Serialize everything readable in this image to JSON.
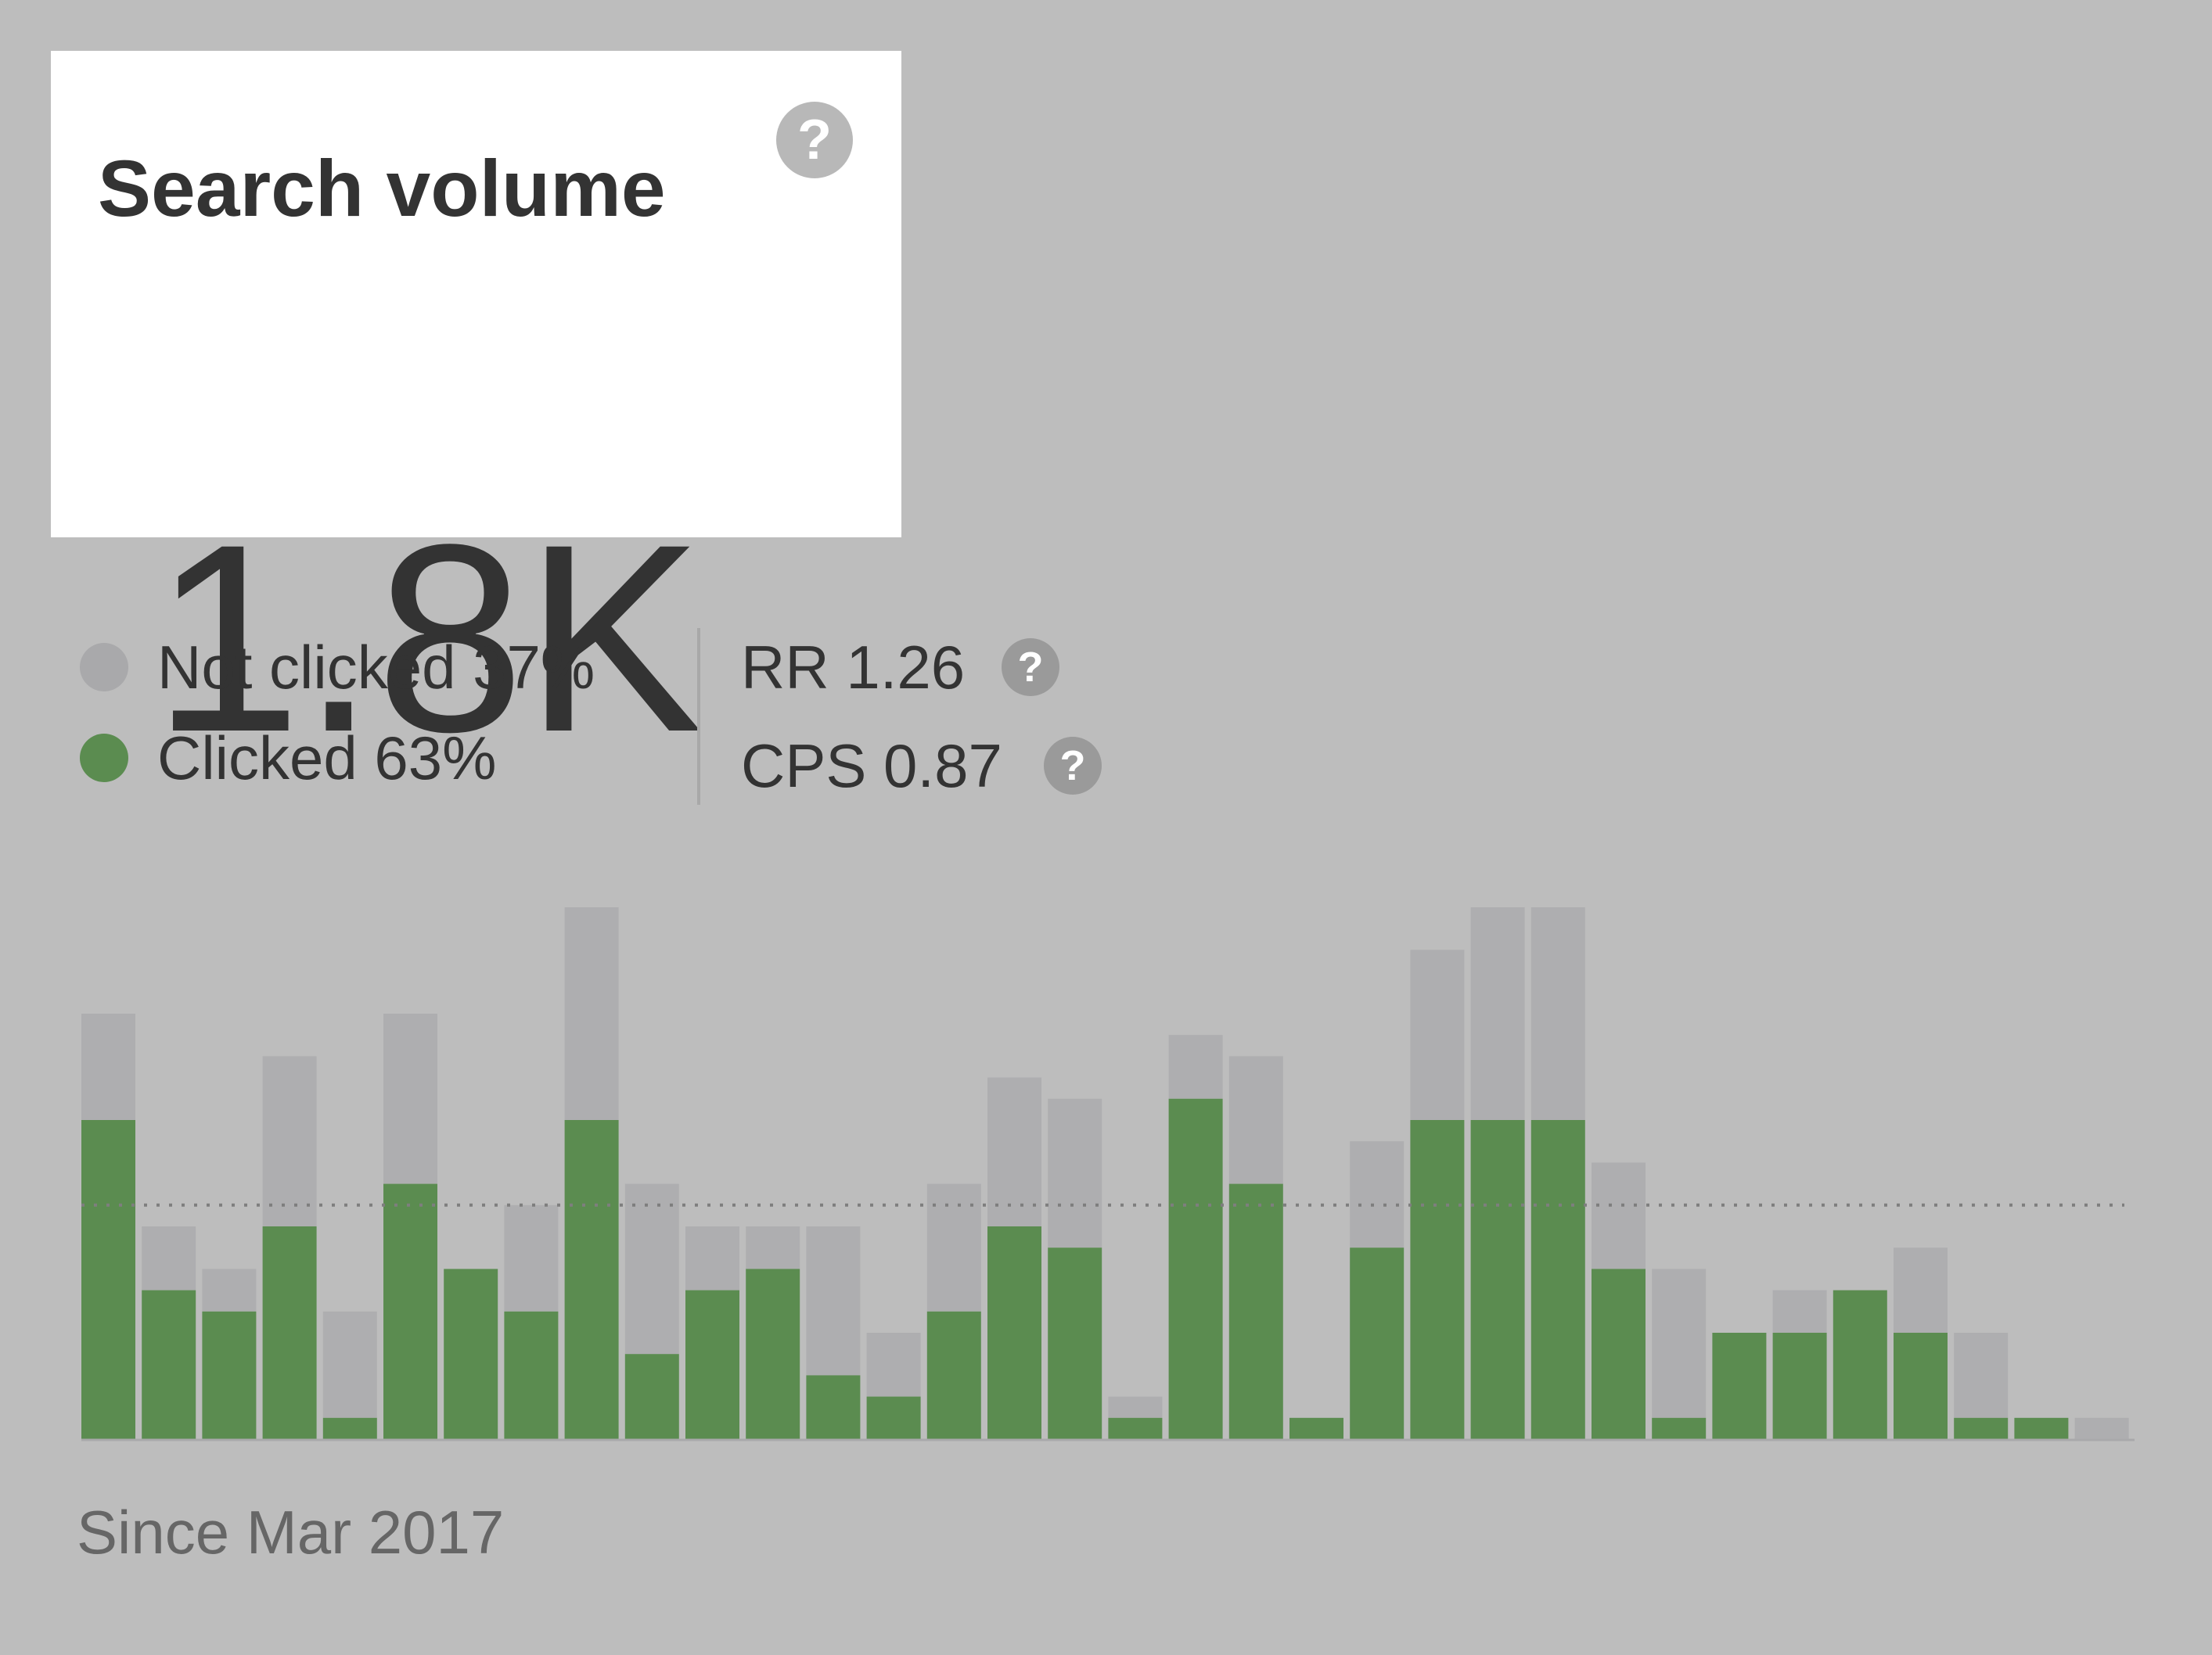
{
  "card": {
    "title": "Search volume",
    "value": "1.8K"
  },
  "legend": {
    "not_clicked": {
      "label": "Not clicked 37%",
      "color": "#a9a9ab"
    },
    "clicked": {
      "label": "Clicked 63%",
      "color": "#5b8c50"
    }
  },
  "metrics": {
    "rr": "RR 1.26",
    "cps": "CPS 0.87"
  },
  "icons": {
    "help": "?"
  },
  "footer": {
    "since": "Since Mar 2017"
  },
  "chart_data": {
    "type": "bar",
    "stacked": true,
    "ylim": [
      0,
      250
    ],
    "average": 110,
    "grid": false,
    "series": [
      {
        "name": "Clicked",
        "color": "#5b8c50",
        "values": [
          150,
          70,
          60,
          100,
          10,
          120,
          80,
          60,
          150,
          40,
          70,
          80,
          30,
          20,
          60,
          100,
          90,
          10,
          160,
          120,
          10,
          90,
          150,
          150,
          150,
          80,
          10,
          50,
          50,
          70,
          50,
          10,
          10,
          0
        ]
      },
      {
        "name": "Not clicked",
        "color": "#aeaeb0",
        "values": [
          50,
          30,
          20,
          80,
          50,
          80,
          0,
          50,
          100,
          80,
          30,
          20,
          70,
          30,
          60,
          70,
          70,
          10,
          30,
          60,
          0,
          50,
          80,
          100,
          100,
          50,
          70,
          0,
          20,
          0,
          40,
          40,
          0,
          10
        ]
      }
    ]
  }
}
